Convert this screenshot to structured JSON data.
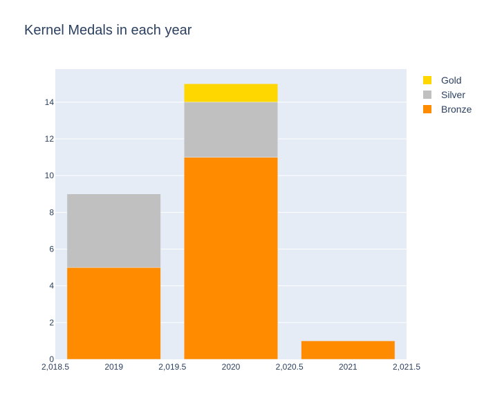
{
  "chart_data": {
    "type": "bar",
    "barmode": "stack",
    "title": "Kernel Medals in each year",
    "xlabel": "",
    "ylabel": "",
    "x": [
      2019,
      2020,
      2021
    ],
    "series": [
      {
        "name": "Bronze",
        "color": "#ff8c00",
        "values": [
          5,
          11,
          1
        ]
      },
      {
        "name": "Silver",
        "color": "#c0c0c0",
        "values": [
          4,
          3,
          0
        ]
      },
      {
        "name": "Gold",
        "color": "#ffd700",
        "values": [
          0,
          1,
          0
        ]
      }
    ],
    "xlim": [
      2018.5,
      2021.5
    ],
    "ylim": [
      0,
      15.8
    ],
    "x_ticks": [
      "2,018.5",
      "2019",
      "2,019.5",
      "2020",
      "2,020.5",
      "2021",
      "2,021.5"
    ],
    "x_tick_values": [
      2018.5,
      2019,
      2019.5,
      2020,
      2020.5,
      2021,
      2021.5
    ],
    "y_ticks": [
      0,
      2,
      4,
      6,
      8,
      10,
      12,
      14
    ],
    "grid": true,
    "plot_bg": "#e5ecf6",
    "text_color": "#2a3f5f",
    "legend_position": "top-right",
    "legend": [
      {
        "name": "Gold",
        "color": "#ffd700"
      },
      {
        "name": "Silver",
        "color": "#c0c0c0"
      },
      {
        "name": "Bronze",
        "color": "#ff8c00"
      }
    ]
  }
}
